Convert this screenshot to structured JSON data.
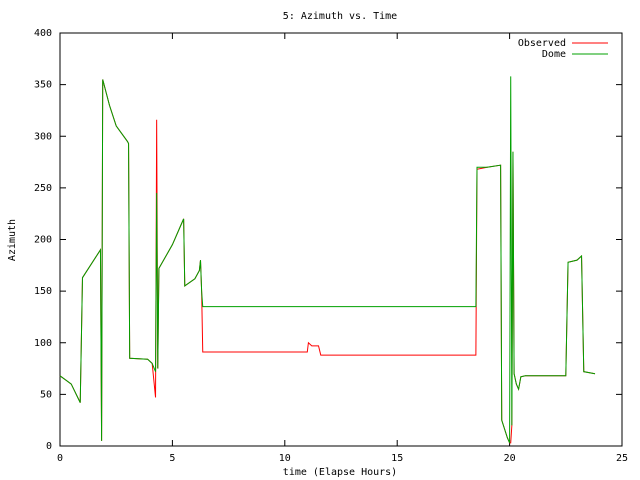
{
  "chart_data": {
    "type": "line",
    "title": "5: Azimuth vs. Time",
    "x_label": "time (Elapse Hours)",
    "y_label": "Azimuth",
    "x": [
      0,
      0.5,
      0.9,
      1.0,
      1.8,
      1.85,
      1.9,
      2.2,
      2.5,
      3.0,
      3.05,
      3.1,
      3.9,
      4.1,
      4.25,
      4.3,
      4.35,
      4.4,
      5.0,
      5.4,
      5.5,
      5.55,
      6.0,
      6.2,
      6.25,
      6.3,
      6.35,
      11.0,
      11.05,
      11.2,
      11.5,
      11.6,
      18.5,
      18.55,
      19.0,
      19.6,
      19.65,
      19.9,
      20.0,
      20.05,
      20.1,
      20.15,
      20.2,
      20.3,
      20.4,
      20.5,
      20.7,
      22.5,
      22.6,
      23.0,
      23.2,
      23.3,
      23.8
    ],
    "series": [
      {
        "name": "Observed",
        "color": "#ff0000",
        "values": [
          68,
          60,
          42,
          163,
          190,
          5,
          355,
          330,
          310,
          295,
          293,
          85,
          84,
          80,
          47,
          316,
          75,
          172,
          195,
          215,
          220,
          155,
          162,
          170,
          180,
          150,
          91,
          91,
          100,
          97,
          97,
          88,
          88,
          268,
          270,
          272,
          25,
          8,
          3,
          3,
          20,
          285,
          70,
          60,
          55,
          67,
          68,
          68,
          178,
          180,
          184,
          72,
          70
        ]
      },
      {
        "name": "Dome",
        "color": "#00a000",
        "values": [
          68,
          60,
          42,
          163,
          190,
          5,
          355,
          330,
          310,
          295,
          293,
          85,
          84,
          80,
          72,
          245,
          75,
          172,
          195,
          215,
          220,
          155,
          162,
          170,
          180,
          150,
          135,
          135,
          135,
          135,
          135,
          135,
          135,
          270,
          270,
          272,
          25,
          8,
          3,
          358,
          20,
          285,
          70,
          60,
          55,
          67,
          68,
          68,
          178,
          180,
          184,
          72,
          70
        ]
      }
    ],
    "xlim": [
      0,
      25
    ],
    "xticks": [
      0,
      5,
      10,
      15,
      20,
      25
    ],
    "ylim": [
      0,
      400
    ],
    "yticks": [
      0,
      50,
      100,
      150,
      200,
      250,
      300,
      350,
      400
    ],
    "grid": false,
    "legend": "top-right"
  }
}
